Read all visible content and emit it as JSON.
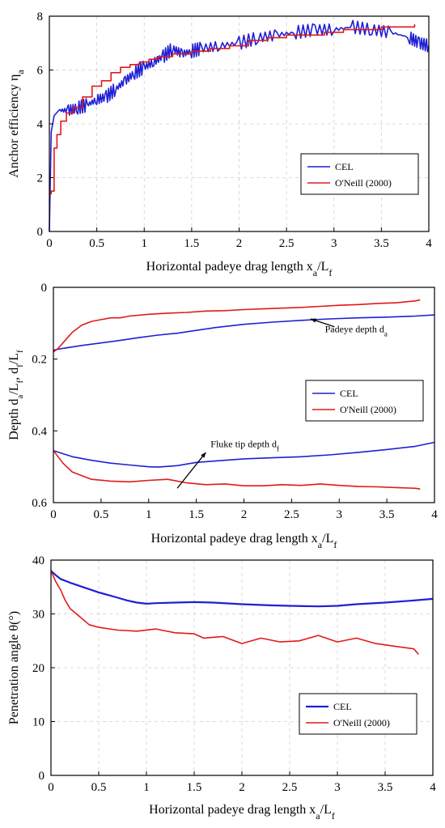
{
  "chart_data": [
    {
      "type": "line",
      "xlabel": "Horizontal padeye drag length x",
      "xlabel_sub": "a",
      "xlabel_tail": "/L",
      "xlabel_tail_sub": "f",
      "ylabel": "Anchor efficiency η",
      "ylabel_sub": "a",
      "xlim": [
        0,
        4
      ],
      "ylim": [
        0,
        8
      ],
      "xticks": [
        "0",
        "0.5",
        "1",
        "1.5",
        "2",
        "2.5",
        "3",
        "3.5",
        "4"
      ],
      "yticks": [
        "0",
        "2",
        "4",
        "6",
        "8"
      ],
      "grid": true,
      "legend_position": "middle-right",
      "series": [
        {
          "name": "CEL",
          "color": "#1f1fd6",
          "style": "noisy",
          "x": [
            0,
            0.02,
            0.05,
            0.1,
            0.2,
            0.3,
            0.4,
            0.5,
            0.6,
            0.7,
            0.8,
            0.9,
            1.0,
            1.1,
            1.2,
            1.3,
            1.4,
            1.5,
            1.6,
            1.8,
            2.0,
            2.2,
            2.4,
            2.6,
            2.8,
            3.0,
            3.2,
            3.4,
            3.6,
            3.8,
            3.9,
            4.0
          ],
          "y": [
            0,
            3.7,
            4.3,
            4.5,
            4.5,
            4.6,
            4.7,
            4.9,
            5.0,
            5.3,
            5.6,
            5.9,
            6.1,
            6.3,
            6.5,
            6.8,
            6.6,
            6.7,
            6.8,
            6.9,
            7.0,
            7.2,
            7.3,
            7.4,
            7.5,
            7.5,
            7.6,
            7.5,
            7.4,
            7.2,
            7.0,
            6.9
          ]
        },
        {
          "name": "O'Neill (2000)",
          "color": "#e01a1a",
          "style": "step",
          "x": [
            0,
            0.02,
            0.05,
            0.08,
            0.12,
            0.18,
            0.25,
            0.35,
            0.45,
            0.55,
            0.65,
            0.75,
            0.85,
            0.95,
            1.05,
            1.15,
            1.3,
            1.5,
            1.7,
            1.9,
            2.1,
            2.3,
            2.5,
            2.7,
            2.9,
            3.1,
            3.3,
            3.5,
            3.7,
            3.85
          ],
          "y": [
            1.4,
            1.5,
            3.1,
            3.6,
            4.1,
            4.4,
            4.6,
            5.0,
            5.4,
            5.6,
            5.9,
            6.1,
            6.2,
            6.3,
            6.4,
            6.5,
            6.6,
            6.7,
            6.8,
            6.9,
            7.1,
            7.2,
            7.3,
            7.3,
            7.4,
            7.5,
            7.5,
            7.6,
            7.6,
            7.7
          ]
        }
      ]
    },
    {
      "type": "line",
      "xlabel": "Horizontal padeye drag length x",
      "xlabel_sub": "a",
      "xlabel_tail": "/L",
      "xlabel_tail_sub": "f",
      "ylabel": "Depth d",
      "ylabel_parts": [
        "Depth d",
        "a",
        "/L",
        "f",
        ", d",
        "f",
        "/L",
        "f"
      ],
      "xlim": [
        0,
        4
      ],
      "ylim": [
        0,
        0.6
      ],
      "y_inverted": true,
      "xticks": [
        "0",
        "0.5",
        "1",
        "1.5",
        "2",
        "2.5",
        "3",
        "3.5",
        "4"
      ],
      "yticks": [
        "0",
        "0.2",
        "0.4",
        "0.6"
      ],
      "grid": false,
      "legend_position": "middle-right",
      "annotations": [
        {
          "text": "Padeye depth d",
          "sub": "a",
          "x": 2.85,
          "y": 0.125,
          "arrow_to_x": 2.7,
          "arrow_to_y": 0.088,
          "arrow_from_x": 2.95,
          "arrow_from_y": 0.11
        },
        {
          "text": "Fluke tip depth d",
          "sub": "f",
          "x": 1.65,
          "y": 0.445,
          "arrow_to_x": 1.6,
          "arrow_to_y": 0.46,
          "arrow_from_x": 1.3,
          "arrow_from_y": 0.56
        }
      ],
      "series": [
        {
          "name": "CEL",
          "color": "#1f1fd6",
          "style": "smooth",
          "x": [
            0,
            0.1,
            0.3,
            0.5,
            0.7,
            0.9,
            1.1,
            1.3,
            1.5,
            1.7,
            2.0,
            2.3,
            2.6,
            2.9,
            3.2,
            3.5,
            3.8,
            4.0
          ],
          "y": [
            0.175,
            0.17,
            0.162,
            0.155,
            0.148,
            0.14,
            0.133,
            0.128,
            0.12,
            0.112,
            0.103,
            0.097,
            0.092,
            0.088,
            0.085,
            0.083,
            0.08,
            0.077
          ]
        },
        {
          "name": "CEL",
          "color": "#1f1fd6",
          "style": "smooth",
          "legend": false,
          "x": [
            0,
            0.2,
            0.4,
            0.6,
            0.8,
            1.0,
            1.1,
            1.3,
            1.5,
            1.8,
            2.0,
            2.3,
            2.6,
            2.9,
            3.2,
            3.5,
            3.8,
            4.0
          ],
          "y": [
            0.455,
            0.472,
            0.482,
            0.49,
            0.495,
            0.5,
            0.501,
            0.497,
            0.488,
            0.482,
            0.478,
            0.475,
            0.472,
            0.467,
            0.46,
            0.452,
            0.443,
            0.432
          ]
        },
        {
          "name": "O'Neill (2000)",
          "color": "#e01a1a",
          "style": "wavy",
          "x": [
            0,
            0.05,
            0.1,
            0.2,
            0.3,
            0.4,
            0.5,
            0.6,
            0.7,
            0.8,
            1.0,
            1.2,
            1.4,
            1.6,
            1.8,
            2.0,
            2.2,
            2.4,
            2.6,
            2.8,
            3.0,
            3.2,
            3.4,
            3.6,
            3.8,
            3.85
          ],
          "y": [
            0.18,
            0.17,
            0.155,
            0.125,
            0.105,
            0.095,
            0.09,
            0.085,
            0.085,
            0.08,
            0.075,
            0.072,
            0.07,
            0.066,
            0.065,
            0.062,
            0.06,
            0.058,
            0.056,
            0.053,
            0.05,
            0.048,
            0.045,
            0.043,
            0.038,
            0.035
          ]
        },
        {
          "name": "O'Neill (2000)",
          "color": "#e01a1a",
          "style": "wavy",
          "legend": false,
          "x": [
            0,
            0.1,
            0.2,
            0.3,
            0.4,
            0.6,
            0.8,
            1.0,
            1.2,
            1.4,
            1.6,
            1.8,
            2.0,
            2.2,
            2.4,
            2.6,
            2.8,
            3.0,
            3.2,
            3.4,
            3.6,
            3.8,
            3.85
          ],
          "y": [
            0.455,
            0.49,
            0.515,
            0.525,
            0.535,
            0.54,
            0.542,
            0.538,
            0.535,
            0.545,
            0.55,
            0.548,
            0.553,
            0.553,
            0.55,
            0.552,
            0.548,
            0.552,
            0.555,
            0.556,
            0.558,
            0.56,
            0.562
          ]
        }
      ]
    },
    {
      "type": "line",
      "xlabel": "Horizontal padeye drag length x",
      "xlabel_sub": "a",
      "xlabel_tail": "/L",
      "xlabel_tail_sub": "f",
      "ylabel": "Penetration angle θ(°)",
      "xlim": [
        0,
        4
      ],
      "ylim": [
        0,
        40
      ],
      "xticks": [
        "0",
        "0.5",
        "1",
        "1.5",
        "2",
        "2.5",
        "3",
        "3.5",
        "4"
      ],
      "yticks": [
        "0",
        "10",
        "20",
        "30",
        "40"
      ],
      "grid": true,
      "legend_position": "middle-right",
      "series": [
        {
          "name": "CEL",
          "color": "#1f1fd6",
          "style": "smooth",
          "x": [
            0,
            0.05,
            0.1,
            0.2,
            0.3,
            0.4,
            0.5,
            0.6,
            0.7,
            0.8,
            0.9,
            1.0,
            1.1,
            1.3,
            1.5,
            1.7,
            2.0,
            2.3,
            2.5,
            2.8,
            3.0,
            3.2,
            3.5,
            3.8,
            4.0
          ],
          "y": [
            38,
            37.2,
            36.5,
            35.8,
            35.2,
            34.6,
            34.0,
            33.5,
            33.0,
            32.5,
            32.1,
            31.9,
            32.0,
            32.1,
            32.2,
            32.1,
            31.8,
            31.6,
            31.5,
            31.4,
            31.5,
            31.8,
            32.1,
            32.5,
            32.8
          ]
        },
        {
          "name": "O'Neill (2000)",
          "color": "#e01a1a",
          "style": "wavy",
          "x": [
            0,
            0.05,
            0.1,
            0.15,
            0.2,
            0.3,
            0.4,
            0.5,
            0.7,
            0.9,
            1.1,
            1.3,
            1.5,
            1.6,
            1.8,
            2.0,
            2.2,
            2.4,
            2.6,
            2.8,
            3.0,
            3.2,
            3.4,
            3.6,
            3.8,
            3.85
          ],
          "y": [
            38,
            36,
            34.5,
            32.5,
            31,
            29.5,
            28,
            27.5,
            27,
            26.8,
            27.2,
            26.5,
            26.3,
            25.5,
            25.8,
            24.5,
            25.5,
            24.8,
            25.0,
            26.0,
            24.8,
            25.5,
            24.5,
            24.0,
            23.5,
            22.5
          ]
        }
      ]
    }
  ]
}
